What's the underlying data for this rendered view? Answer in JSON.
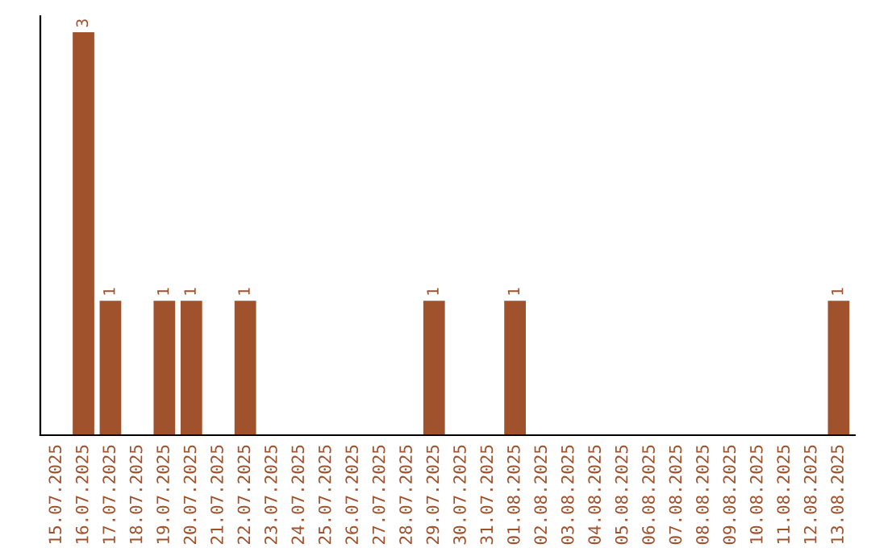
{
  "chart_data": {
    "type": "bar",
    "categories": [
      "15.07.2025",
      "16.07.2025",
      "17.07.2025",
      "18.07.2025",
      "19.07.2025",
      "20.07.2025",
      "21.07.2025",
      "22.07.2025",
      "23.07.2025",
      "24.07.2025",
      "25.07.2025",
      "26.07.2025",
      "27.07.2025",
      "28.07.2025",
      "29.07.2025",
      "30.07.2025",
      "31.07.2025",
      "01.08.2025",
      "02.08.2025",
      "03.08.2025",
      "04.08.2025",
      "05.08.2025",
      "06.08.2025",
      "07.08.2025",
      "08.08.2025",
      "09.08.2025",
      "10.08.2025",
      "11.08.2025",
      "12.08.2025",
      "13.08.2025"
    ],
    "values": [
      0,
      3,
      1,
      0,
      1,
      1,
      0,
      1,
      0,
      0,
      0,
      0,
      0,
      0,
      1,
      0,
      0,
      1,
      0,
      0,
      0,
      0,
      0,
      0,
      0,
      0,
      0,
      0,
      0,
      1
    ],
    "value_labels": [
      null,
      "3",
      "1",
      null,
      "1",
      "1",
      null,
      "1",
      null,
      null,
      null,
      null,
      null,
      null,
      "1",
      null,
      null,
      "1",
      null,
      null,
      null,
      null,
      null,
      null,
      null,
      null,
      null,
      null,
      null,
      "1"
    ],
    "color": "#a0522d",
    "tick_labels": "x",
    "grid": false
  }
}
